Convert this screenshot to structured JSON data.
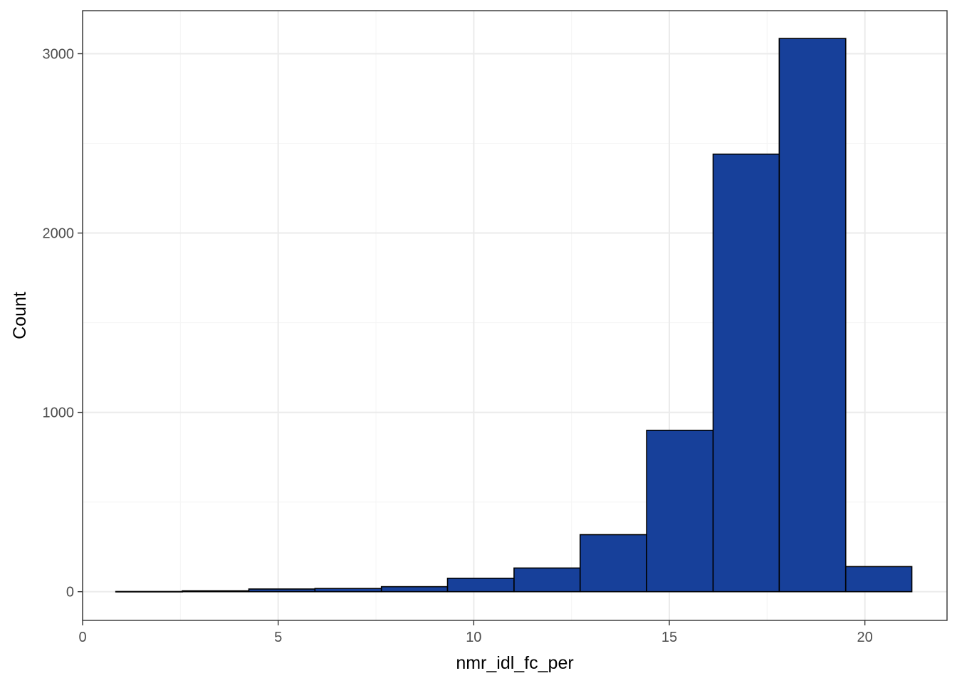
{
  "chart_data": {
    "type": "bar",
    "subtype": "histogram",
    "title": "",
    "xlabel": "nmr_idl_fc_per",
    "ylabel": "Count",
    "xlim": [
      0,
      22.1
    ],
    "ylim": [
      -160,
      3240
    ],
    "x_ticks": [
      0,
      5,
      10,
      15,
      20
    ],
    "x_tick_labels": [
      "0",
      "5",
      "10",
      "15",
      "20"
    ],
    "y_ticks": [
      0,
      1000,
      2000,
      3000
    ],
    "y_tick_labels": [
      "0",
      "1000",
      "2000",
      "3000"
    ],
    "grid": true,
    "bin_edges": [
      0.85,
      2.55,
      4.25,
      5.94,
      7.64,
      9.33,
      11.03,
      12.72,
      14.42,
      16.12,
      17.81,
      19.51,
      21.2
    ],
    "values": [
      1,
      5,
      15,
      18,
      28,
      75,
      132,
      318,
      900,
      2440,
      3085,
      140
    ],
    "bar_fill": "#17409a",
    "bar_stroke": "#000000",
    "panel_border": "#333333",
    "grid_major": "#ebebeb",
    "grid_minor": "#f5f5f5"
  }
}
